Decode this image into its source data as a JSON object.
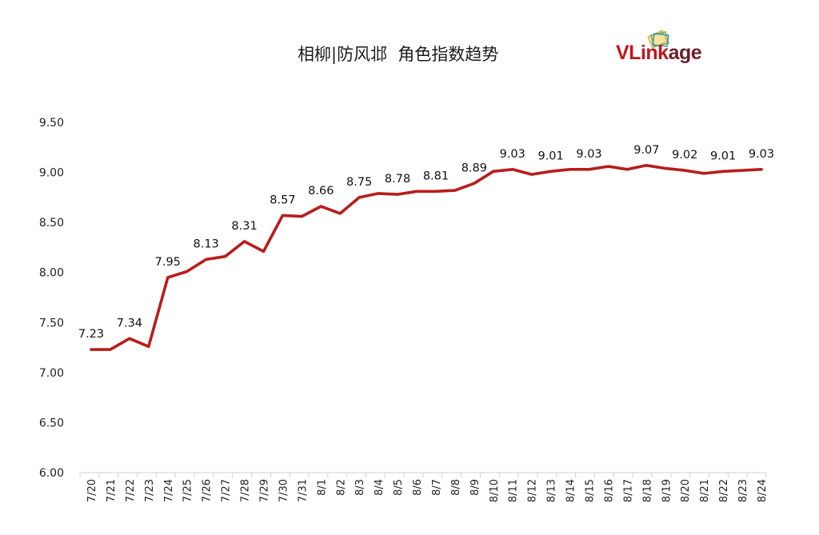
{
  "chart_data": {
    "type": "line",
    "title": "相柳|防风邶  角色指数趋势",
    "logo_text": "VLinkage",
    "categories": [
      "7/20",
      "7/21",
      "7/22",
      "7/23",
      "7/24",
      "7/25",
      "7/26",
      "7/27",
      "7/28",
      "7/29",
      "7/30",
      "7/31",
      "8/1",
      "8/2",
      "8/3",
      "8/4",
      "8/5",
      "8/6",
      "8/7",
      "8/8",
      "8/9",
      "8/10",
      "8/11",
      "8/12",
      "8/13",
      "8/14",
      "8/15",
      "8/16",
      "8/17",
      "8/18",
      "8/19",
      "8/20",
      "8/21",
      "8/22",
      "8/23",
      "8/24"
    ],
    "values": [
      7.23,
      7.23,
      7.34,
      7.26,
      7.95,
      8.01,
      8.13,
      8.16,
      8.31,
      8.21,
      8.57,
      8.56,
      8.66,
      8.59,
      8.75,
      8.79,
      8.78,
      8.81,
      8.81,
      8.82,
      8.89,
      9.01,
      9.03,
      8.98,
      9.01,
      9.03,
      9.03,
      9.06,
      9.03,
      9.07,
      9.04,
      9.02,
      8.99,
      9.01,
      9.02,
      9.03
    ],
    "data_labels": [
      {
        "index": 0,
        "text": "7.23"
      },
      {
        "index": 2,
        "text": "7.34"
      },
      {
        "index": 4,
        "text": "7.95"
      },
      {
        "index": 6,
        "text": "8.13"
      },
      {
        "index": 8,
        "text": "8.31"
      },
      {
        "index": 10,
        "text": "8.57"
      },
      {
        "index": 12,
        "text": "8.66"
      },
      {
        "index": 14,
        "text": "8.75"
      },
      {
        "index": 16,
        "text": "8.78"
      },
      {
        "index": 18,
        "text": "8.81"
      },
      {
        "index": 20,
        "text": "8.89"
      },
      {
        "index": 22,
        "text": "9.03"
      },
      {
        "index": 24,
        "text": "9.01"
      },
      {
        "index": 26,
        "text": "9.03"
      },
      {
        "index": 29,
        "text": "9.07"
      },
      {
        "index": 31,
        "text": "9.02"
      },
      {
        "index": 33,
        "text": "9.01"
      },
      {
        "index": 35,
        "text": "9.03"
      }
    ],
    "yticks": [
      "6.00",
      "6.50",
      "7.00",
      "7.50",
      "8.00",
      "8.50",
      "9.00",
      "9.50"
    ],
    "ylim": [
      6.0,
      9.5
    ],
    "grid": false,
    "legend": "none",
    "line_color": "#b81d1d"
  }
}
